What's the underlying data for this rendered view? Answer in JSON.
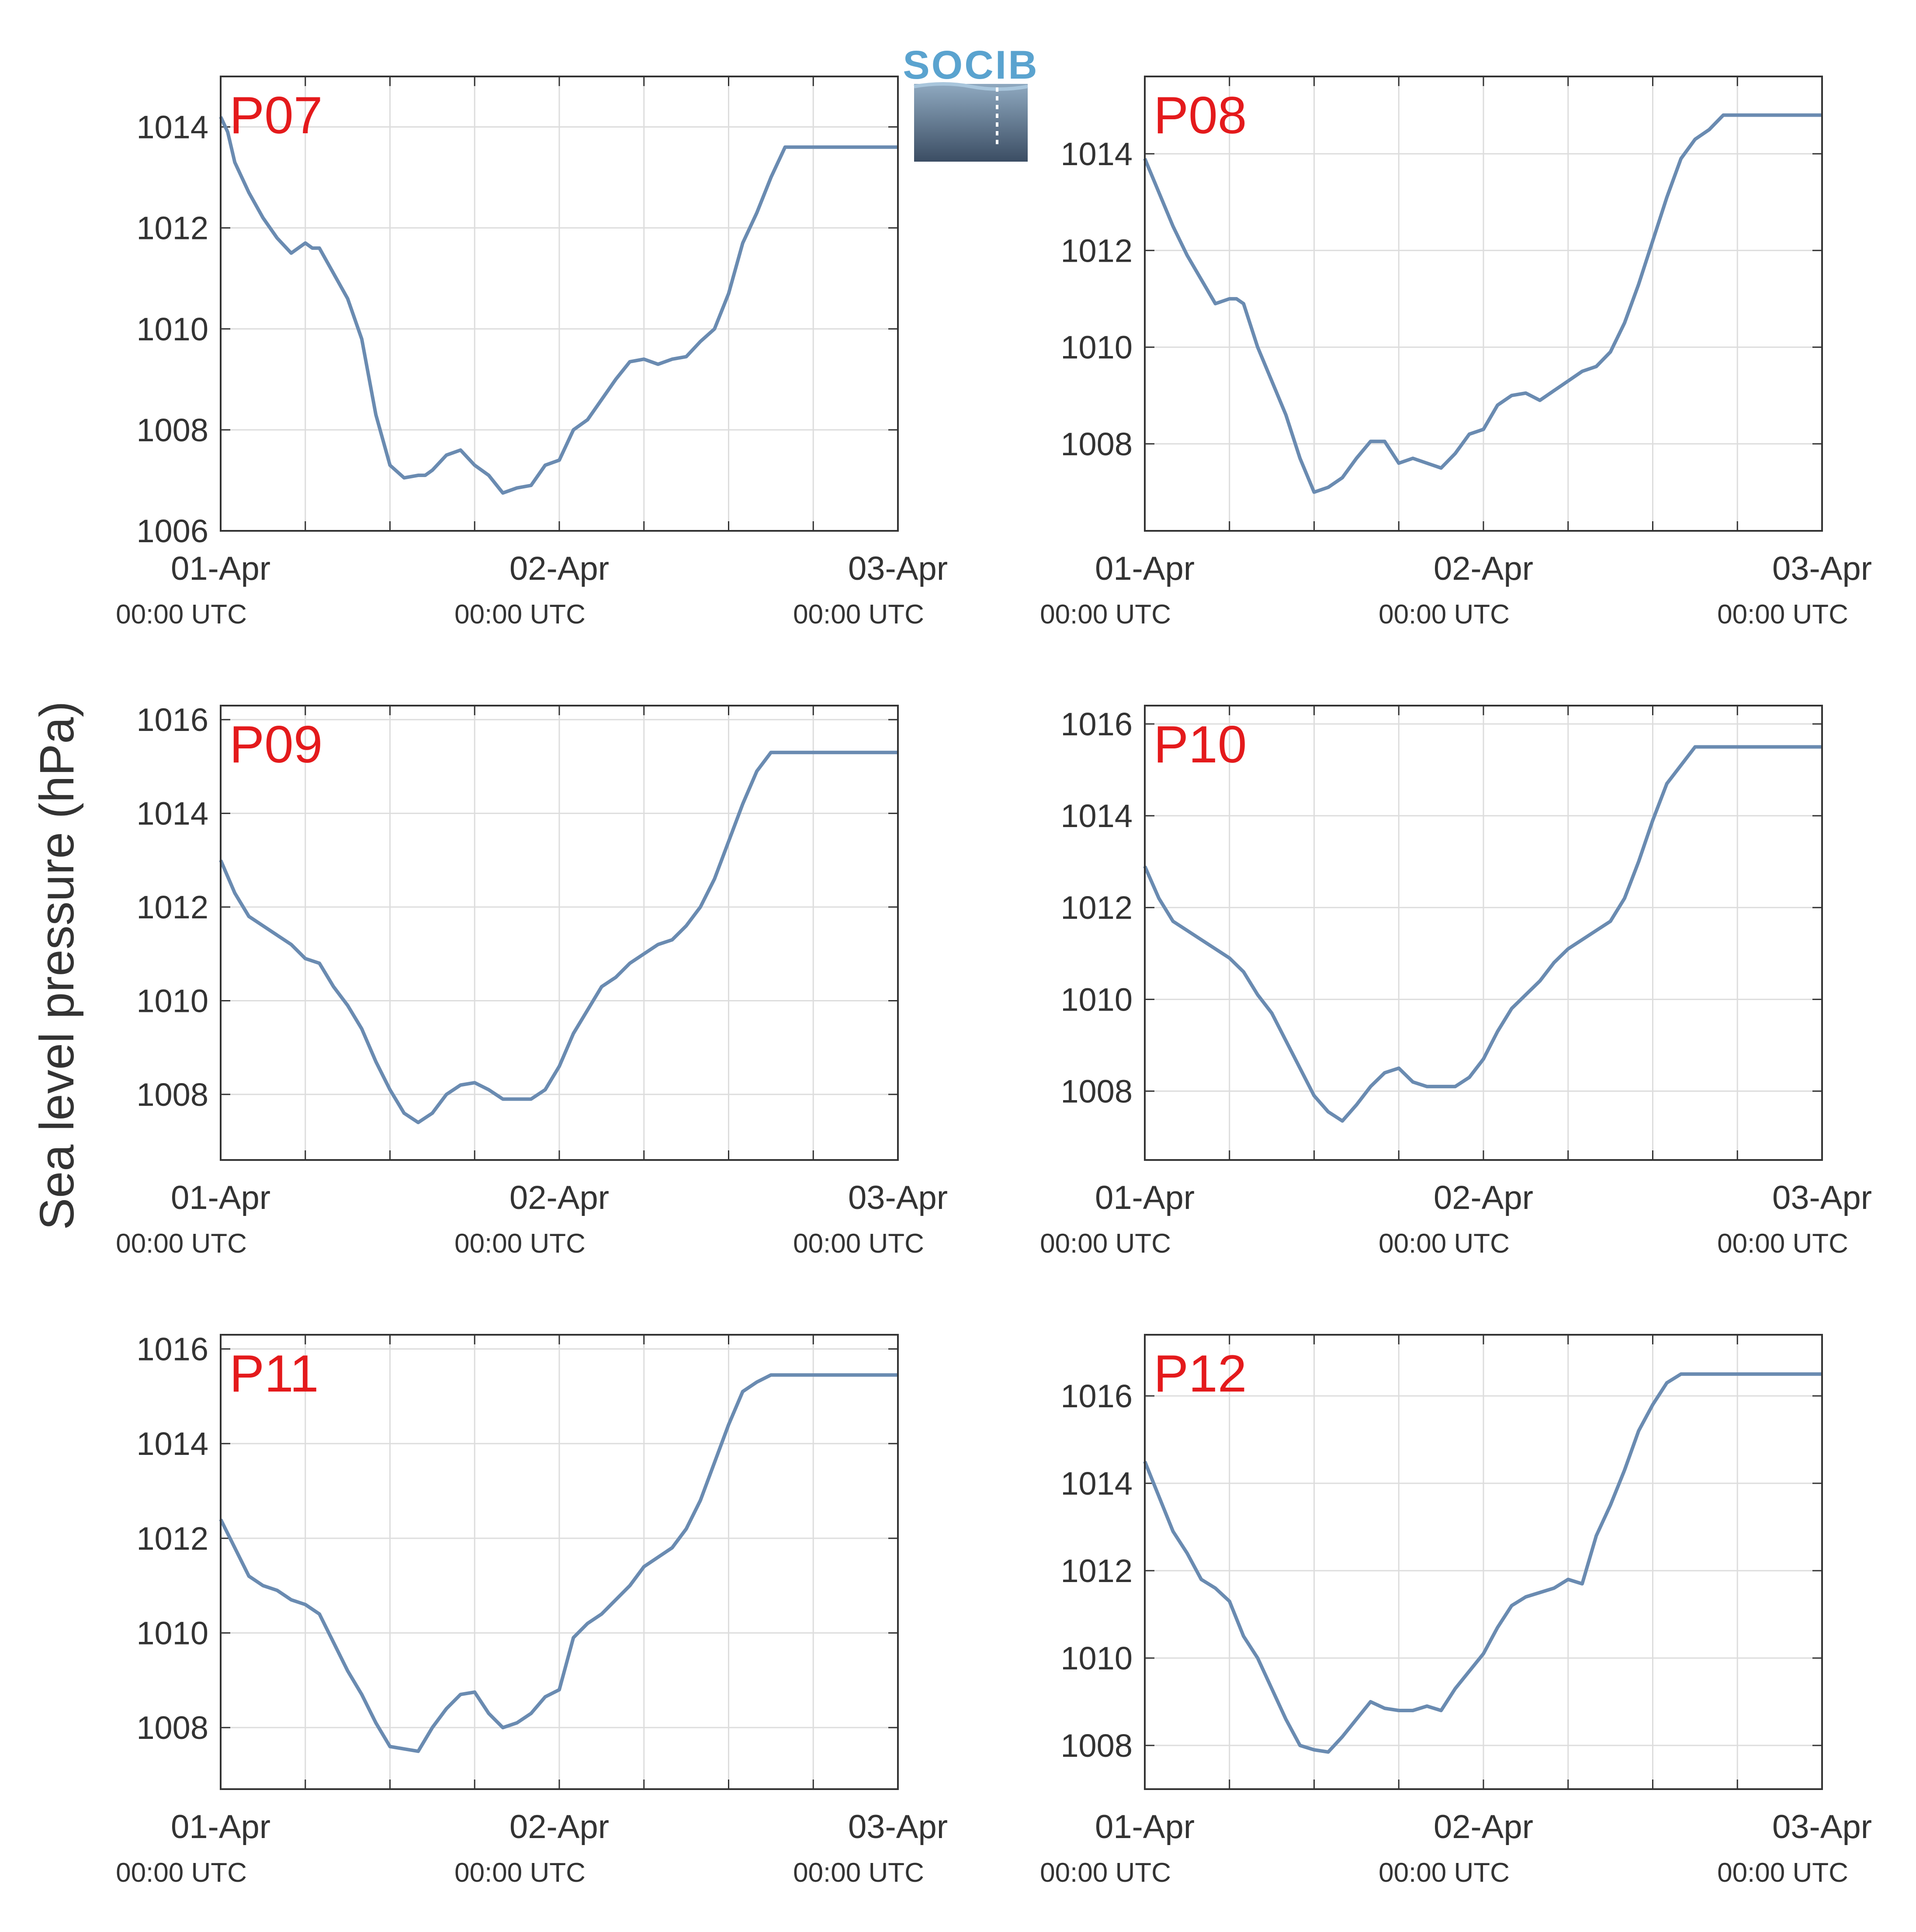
{
  "ylabel": "Sea level pressure (hPa)",
  "logo": {
    "text": "SOCIB"
  },
  "colors": {
    "line": "#6a8bb1",
    "panel_label": "#e41a1c",
    "grid": "#dddddd",
    "axis": "#333333"
  },
  "xtick_labels": [
    {
      "date": "01-Apr",
      "time": "00:00 UTC"
    },
    {
      "date": "02-Apr",
      "time": "00:00 UTC"
    },
    {
      "date": "03-Apr",
      "time": "00:00 UTC"
    }
  ],
  "chart_data": [
    {
      "type": "line",
      "label": "P07",
      "xlabel": "",
      "ylabel": "Sea level pressure (hPa)",
      "xlim": [
        0,
        48
      ],
      "ylim": [
        1006,
        1015
      ],
      "yticks": [
        "1006",
        "1008",
        "1010",
        "1012",
        "1014"
      ],
      "grid": true,
      "x": [
        0,
        0.5,
        1,
        2,
        3,
        4,
        5,
        6,
        6.5,
        7,
        8,
        9,
        10,
        11,
        12,
        13,
        14,
        14.5,
        15,
        16,
        17,
        18,
        19,
        20,
        21,
        22,
        23,
        24,
        25,
        26,
        27,
        28,
        29,
        30,
        31,
        32,
        33,
        34,
        35,
        36,
        37,
        38,
        39,
        40,
        41,
        42,
        43,
        44,
        45,
        46,
        47,
        48
      ],
      "y": [
        1014.2,
        1013.9,
        1013.3,
        1012.7,
        1012.2,
        1011.8,
        1011.5,
        1011.7,
        1011.6,
        1011.6,
        1011.1,
        1010.6,
        1009.8,
        1008.3,
        1007.3,
        1007.05,
        1007.1,
        1007.1,
        1007.2,
        1007.5,
        1007.6,
        1007.3,
        1007.1,
        1006.75,
        1006.85,
        1006.9,
        1007.3,
        1007.4,
        1008.0,
        1008.2,
        1008.6,
        1009.0,
        1009.35,
        1009.4,
        1009.3,
        1009.4,
        1009.45,
        1009.75,
        1010.0,
        1010.7,
        1011.7,
        1012.3,
        1013.0,
        1013.6,
        1013.6,
        1013.6,
        1013.6,
        1013.6,
        1013.6,
        1013.6,
        1013.6,
        1013.6
      ]
    },
    {
      "type": "line",
      "label": "P08",
      "xlabel": "",
      "ylabel": "Sea level pressure (hPa)",
      "xlim": [
        0,
        48
      ],
      "ylim": [
        1006.2,
        1015.6
      ],
      "yticks": [
        "1008",
        "1010",
        "1012",
        "1014"
      ],
      "grid": true,
      "x": [
        0,
        1,
        2,
        3,
        4,
        5,
        6,
        6.5,
        7,
        8,
        9,
        10,
        11,
        12,
        13,
        14,
        15,
        16,
        17,
        18,
        19,
        20,
        21,
        22,
        23,
        24,
        25,
        26,
        27,
        28,
        29,
        30,
        31,
        32,
        33,
        34,
        35,
        36,
        37,
        38,
        39,
        40,
        41,
        42,
        43,
        44,
        45,
        46,
        47,
        48
      ],
      "y": [
        1013.9,
        1013.2,
        1012.5,
        1011.9,
        1011.4,
        1010.9,
        1011.0,
        1011.0,
        1010.9,
        1010.0,
        1009.3,
        1008.6,
        1007.7,
        1007.0,
        1007.1,
        1007.3,
        1007.7,
        1008.05,
        1008.05,
        1007.6,
        1007.7,
        1007.6,
        1007.5,
        1007.8,
        1008.2,
        1008.3,
        1008.8,
        1009.0,
        1009.05,
        1008.9,
        1009.1,
        1009.3,
        1009.5,
        1009.6,
        1009.9,
        1010.5,
        1011.3,
        1012.2,
        1013.1,
        1013.9,
        1014.3,
        1014.5,
        1014.8,
        1014.8,
        1014.8,
        1014.8,
        1014.8,
        1014.8,
        1014.8,
        1014.8
      ]
    },
    {
      "type": "line",
      "label": "P09",
      "xlabel": "",
      "ylabel": "Sea level pressure (hPa)",
      "xlim": [
        0,
        48
      ],
      "ylim": [
        1006.6,
        1016.3
      ],
      "yticks": [
        "1008",
        "1010",
        "1012",
        "1014",
        "1016"
      ],
      "grid": true,
      "x": [
        0,
        1,
        2,
        3,
        4,
        5,
        6,
        7,
        8,
        9,
        10,
        11,
        12,
        13,
        14,
        15,
        16,
        17,
        18,
        19,
        20,
        21,
        22,
        23,
        24,
        25,
        26,
        27,
        28,
        29,
        30,
        31,
        32,
        33,
        34,
        35,
        36,
        37,
        38,
        39,
        40,
        41,
        42,
        43,
        44,
        45,
        46,
        47,
        48
      ],
      "y": [
        1013.0,
        1012.3,
        1011.8,
        1011.6,
        1011.4,
        1011.2,
        1010.9,
        1010.8,
        1010.3,
        1009.9,
        1009.4,
        1008.7,
        1008.1,
        1007.6,
        1007.4,
        1007.6,
        1008.0,
        1008.2,
        1008.25,
        1008.1,
        1007.9,
        1007.9,
        1007.9,
        1008.1,
        1008.6,
        1009.3,
        1009.8,
        1010.3,
        1010.5,
        1010.8,
        1011.0,
        1011.2,
        1011.3,
        1011.6,
        1012.0,
        1012.6,
        1013.4,
        1014.2,
        1014.9,
        1015.3,
        1015.3,
        1015.3,
        1015.3,
        1015.3,
        1015.3,
        1015.3,
        1015.3,
        1015.3,
        1015.3
      ]
    },
    {
      "type": "line",
      "label": "P10",
      "xlabel": "",
      "ylabel": "Sea level pressure (hPa)",
      "xlim": [
        0,
        48
      ],
      "ylim": [
        1006.5,
        1016.4
      ],
      "yticks": [
        "1008",
        "1010",
        "1012",
        "1014",
        "1016"
      ],
      "grid": true,
      "x": [
        0,
        1,
        2,
        3,
        4,
        5,
        6,
        7,
        8,
        9,
        10,
        11,
        12,
        13,
        14,
        15,
        16,
        17,
        18,
        19,
        20,
        21,
        22,
        23,
        24,
        25,
        26,
        27,
        28,
        29,
        30,
        31,
        32,
        33,
        34,
        35,
        36,
        37,
        38,
        39,
        40,
        41,
        42,
        43,
        44,
        45,
        46,
        47,
        48
      ],
      "y": [
        1012.9,
        1012.2,
        1011.7,
        1011.5,
        1011.3,
        1011.1,
        1010.9,
        1010.6,
        1010.1,
        1009.7,
        1009.1,
        1008.5,
        1007.9,
        1007.55,
        1007.35,
        1007.7,
        1008.1,
        1008.4,
        1008.5,
        1008.2,
        1008.1,
        1008.1,
        1008.1,
        1008.3,
        1008.7,
        1009.3,
        1009.8,
        1010.1,
        1010.4,
        1010.8,
        1011.1,
        1011.3,
        1011.5,
        1011.7,
        1012.2,
        1013.0,
        1013.9,
        1014.7,
        1015.1,
        1015.5,
        1015.5,
        1015.5,
        1015.5,
        1015.5,
        1015.5,
        1015.5,
        1015.5,
        1015.5,
        1015.5
      ]
    },
    {
      "type": "line",
      "label": "P11",
      "xlabel": "",
      "ylabel": "Sea level pressure (hPa)",
      "xlim": [
        0,
        48
      ],
      "ylim": [
        1006.7,
        1016.3
      ],
      "yticks": [
        "1008",
        "1010",
        "1012",
        "1014",
        "1016"
      ],
      "grid": true,
      "x": [
        0,
        1,
        2,
        3,
        4,
        5,
        6,
        7,
        8,
        9,
        10,
        11,
        12,
        13,
        14,
        15,
        16,
        17,
        18,
        19,
        20,
        21,
        22,
        23,
        24,
        25,
        26,
        27,
        28,
        29,
        30,
        31,
        32,
        33,
        34,
        35,
        36,
        37,
        38,
        39,
        40,
        41,
        42,
        43,
        44,
        45,
        46,
        47,
        48
      ],
      "y": [
        1012.4,
        1011.8,
        1011.2,
        1011.0,
        1010.9,
        1010.7,
        1010.6,
        1010.4,
        1009.8,
        1009.2,
        1008.7,
        1008.1,
        1007.6,
        1007.55,
        1007.5,
        1008.0,
        1008.4,
        1008.7,
        1008.75,
        1008.3,
        1008.0,
        1008.1,
        1008.3,
        1008.65,
        1008.8,
        1009.9,
        1010.2,
        1010.4,
        1010.7,
        1011.0,
        1011.4,
        1011.6,
        1011.8,
        1012.2,
        1012.8,
        1013.6,
        1014.4,
        1015.1,
        1015.3,
        1015.45,
        1015.45,
        1015.45,
        1015.45,
        1015.45,
        1015.45,
        1015.45,
        1015.45,
        1015.45,
        1015.45
      ]
    },
    {
      "type": "line",
      "label": "P12",
      "xlabel": "",
      "ylabel": "Sea level pressure (hPa)",
      "xlim": [
        0,
        48
      ],
      "ylim": [
        1007.0,
        1017.4
      ],
      "yticks": [
        "1008",
        "1010",
        "1012",
        "1014",
        "1016"
      ],
      "grid": true,
      "x": [
        0,
        1,
        2,
        3,
        4,
        5,
        6,
        7,
        8,
        9,
        10,
        11,
        12,
        13,
        14,
        15,
        16,
        17,
        18,
        19,
        20,
        21,
        22,
        23,
        24,
        25,
        26,
        27,
        28,
        29,
        30,
        31,
        32,
        33,
        34,
        35,
        36,
        37,
        38,
        39,
        40,
        41,
        42,
        43,
        44,
        45,
        46,
        47,
        48
      ],
      "y": [
        1014.5,
        1013.7,
        1012.9,
        1012.4,
        1011.8,
        1011.6,
        1011.3,
        1010.5,
        1010.0,
        1009.3,
        1008.6,
        1008.0,
        1007.9,
        1007.85,
        1008.2,
        1008.6,
        1009.0,
        1008.85,
        1008.8,
        1008.8,
        1008.9,
        1008.8,
        1009.3,
        1009.7,
        1010.1,
        1010.7,
        1011.2,
        1011.4,
        1011.5,
        1011.6,
        1011.8,
        1011.7,
        1012.8,
        1013.5,
        1014.3,
        1015.2,
        1015.8,
        1016.3,
        1016.5,
        1016.5,
        1016.5,
        1016.5,
        1016.5,
        1016.5,
        1016.5,
        1016.5,
        1016.5,
        1016.5,
        1016.5
      ]
    }
  ]
}
